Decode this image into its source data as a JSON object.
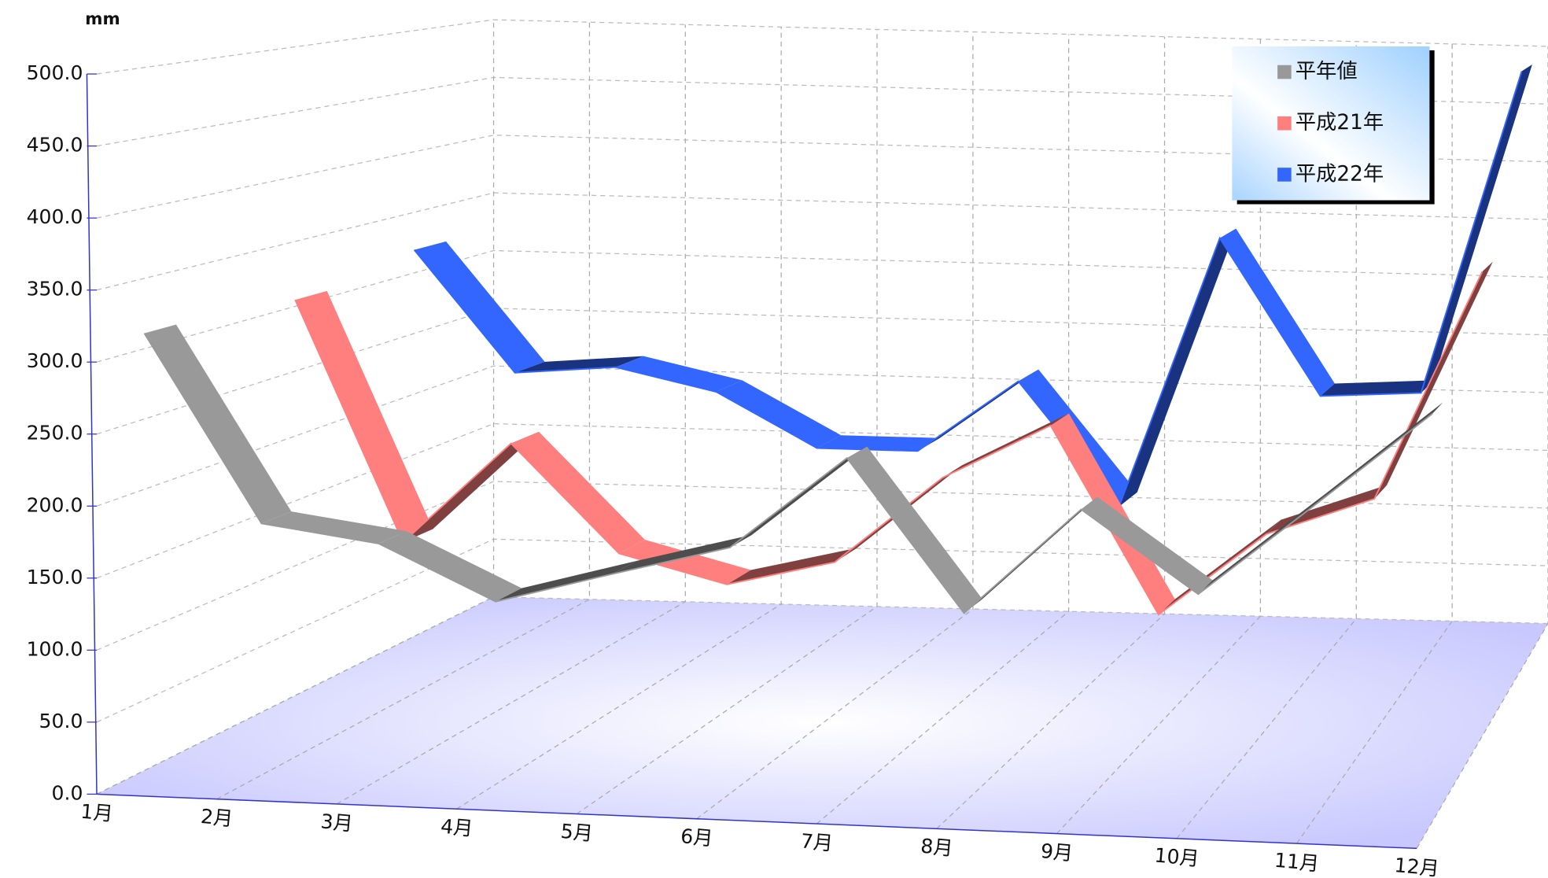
{
  "chart_data": {
    "type": "ribbon3d",
    "y_label": "mm",
    "categories": [
      "1月",
      "2月",
      "3月",
      "4月",
      "5月",
      "6月",
      "7月",
      "8月",
      "9月",
      "10月",
      "11月",
      "12月"
    ],
    "series": [
      {
        "name": "平年値",
        "color": "#999999",
        "values": [
          311,
          179,
          168,
          130,
          153,
          175,
          242,
          135,
          212,
          155,
          222,
          290
        ]
      },
      {
        "name": "平成21年",
        "color": "#ff7f7f",
        "values": [
          305,
          121,
          200,
          118,
          97,
          117,
          185,
          228,
          85,
          150,
          180,
          358
        ]
      },
      {
        "name": "平成22年",
        "color": "#3366ff",
        "values": [
          319,
          220,
          227,
          209,
          165,
          165,
          225,
          124,
          348,
          220,
          225,
          493
        ]
      }
    ],
    "ylim": [
      0,
      500
    ],
    "yticks": [
      {
        "value": 0,
        "label": "0.0"
      },
      {
        "value": 50,
        "label": "50.0"
      },
      {
        "value": 100,
        "label": "100.0"
      },
      {
        "value": 150,
        "label": "150.0"
      },
      {
        "value": 200,
        "label": "200.0"
      },
      {
        "value": 250,
        "label": "250.0"
      },
      {
        "value": 300,
        "label": "300.0"
      },
      {
        "value": 350,
        "label": "350.0"
      },
      {
        "value": 400,
        "label": "400.0"
      },
      {
        "value": 450,
        "label": "450.0"
      },
      {
        "value": 500,
        "label": "500.0"
      }
    ],
    "grid": true,
    "legend": "top-right"
  }
}
